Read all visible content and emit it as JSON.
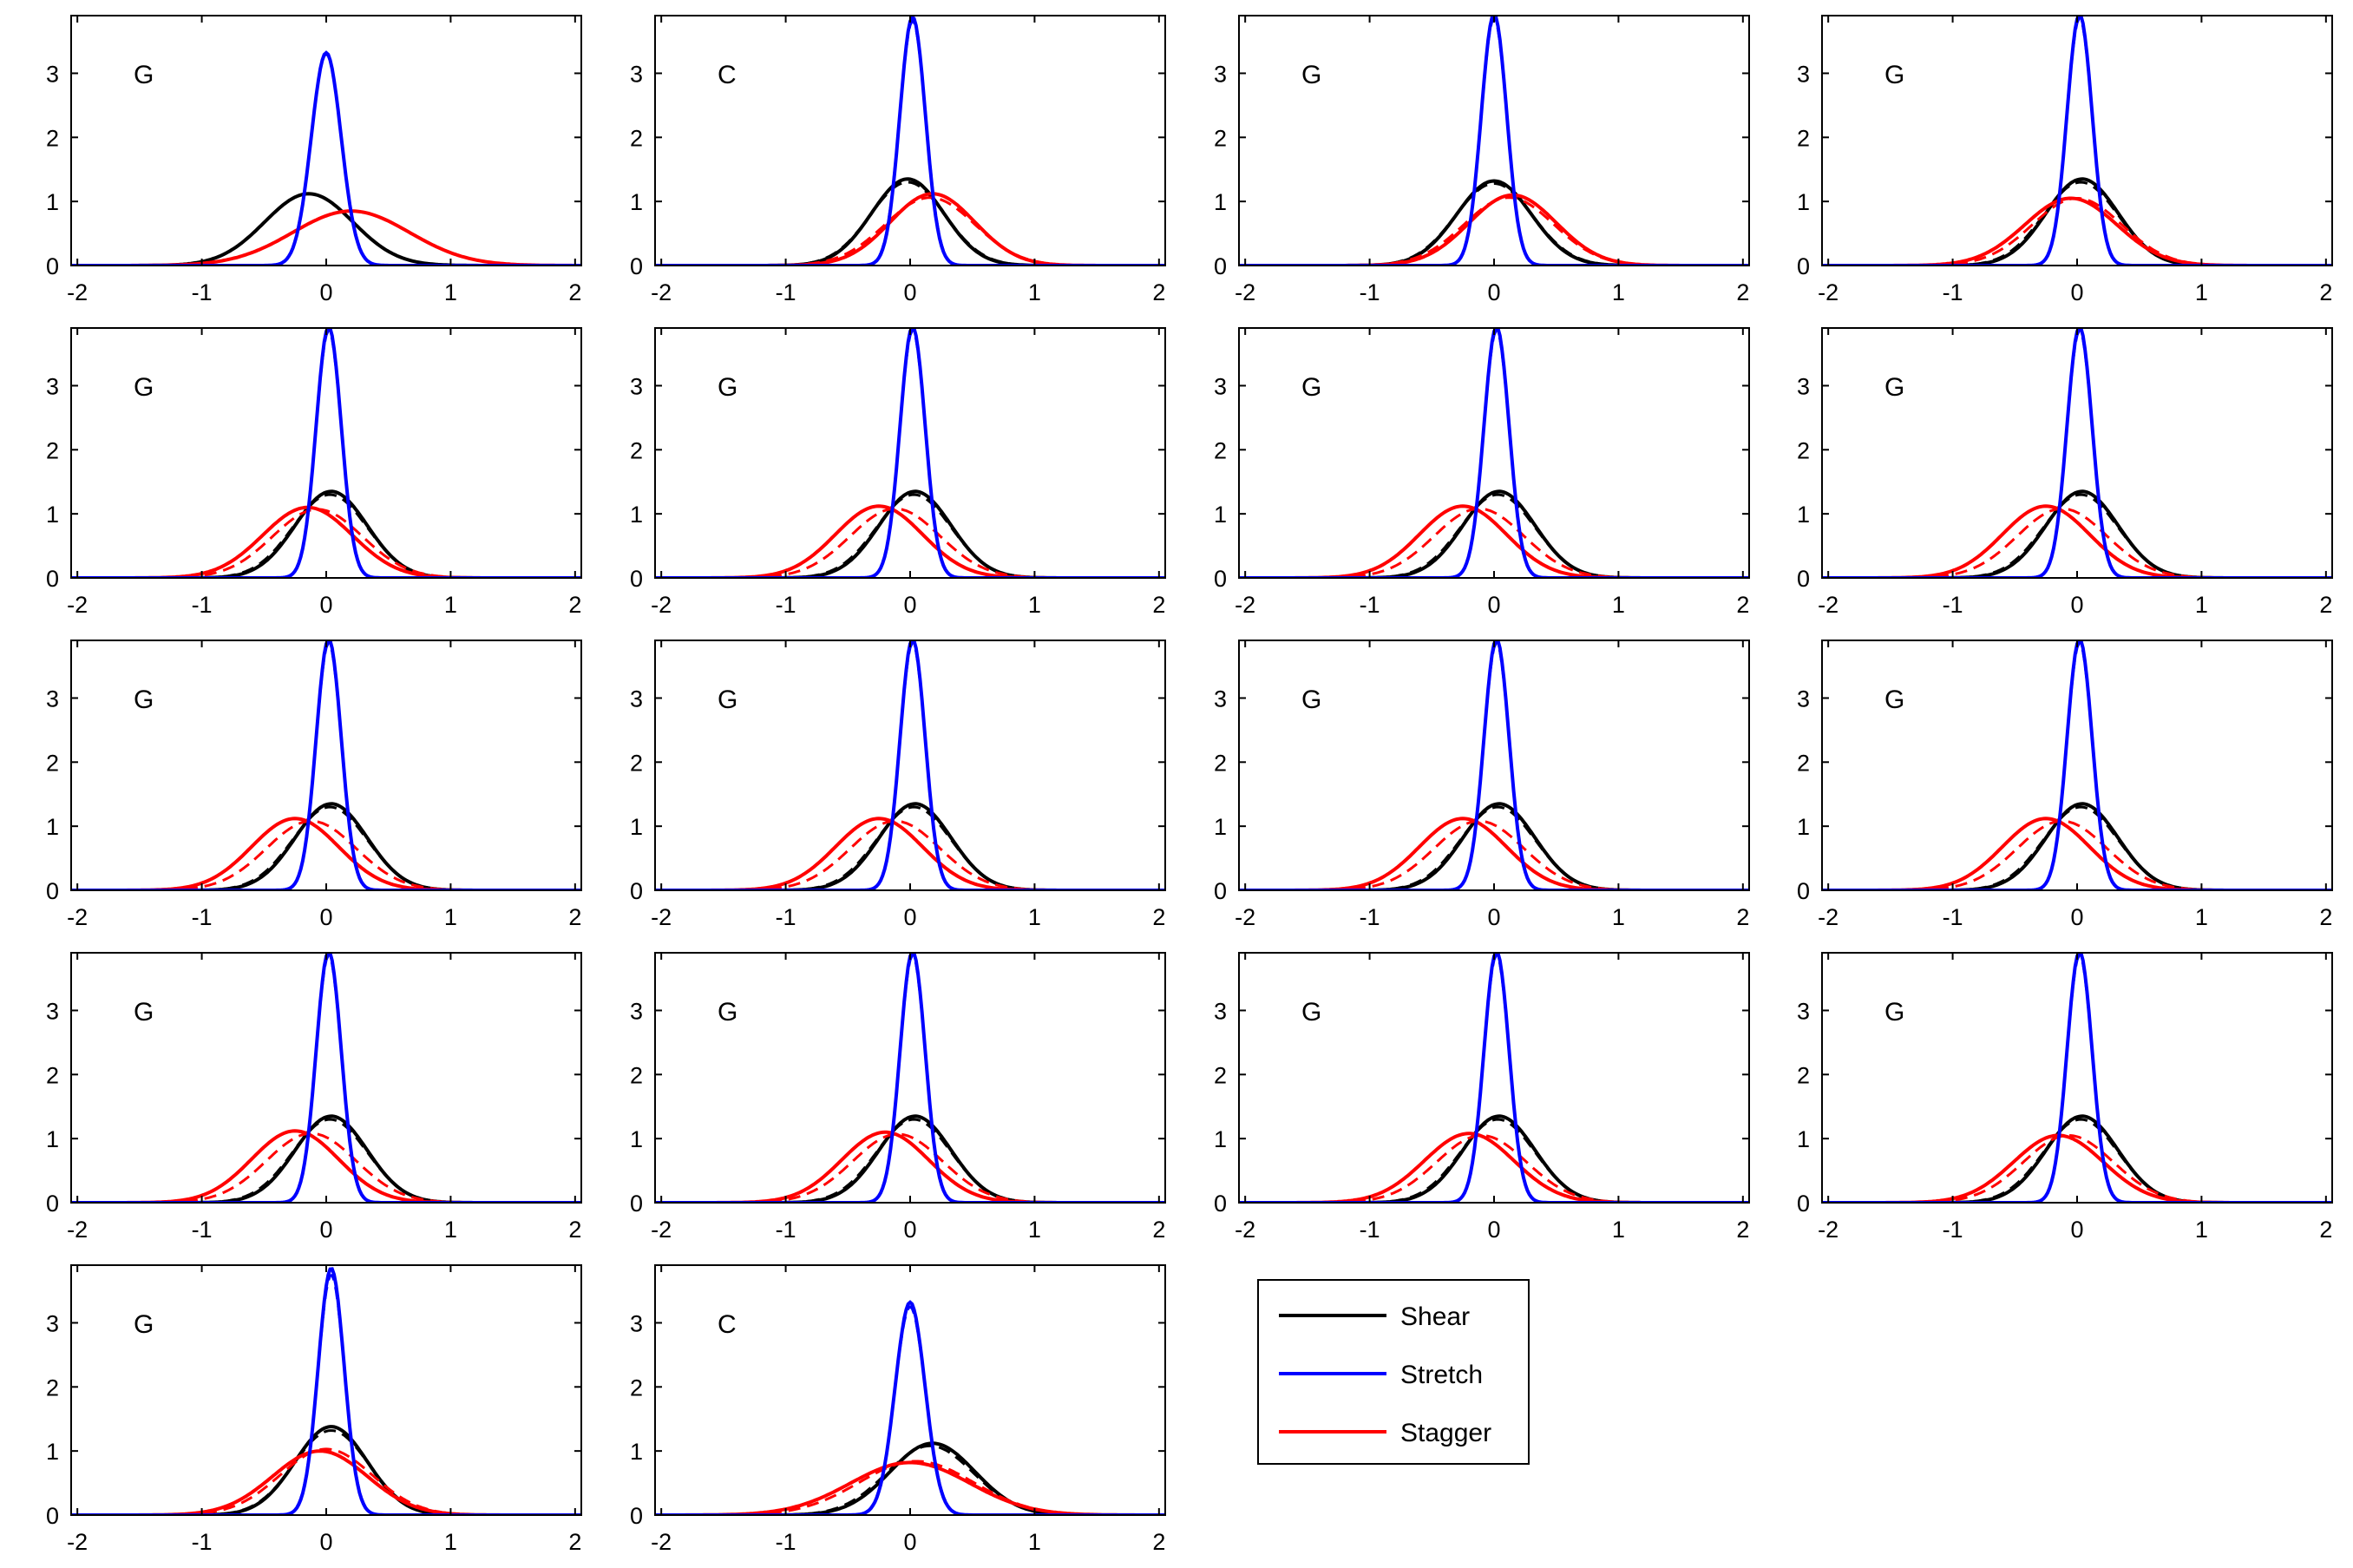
{
  "colors": {
    "shear": "#000000",
    "stretch": "#0000ff",
    "stagger": "#ff0000"
  },
  "legend": {
    "placement": "bottom-right",
    "entries": [
      {
        "key": "shear",
        "label": "Shear"
      },
      {
        "key": "stretch",
        "label": "Stretch"
      },
      {
        "key": "stagger",
        "label": "Stagger"
      }
    ]
  },
  "chart_data": {
    "type": "line",
    "description_of_series": "Each panel shows three families of density curves (Shear, Stretch, Stagger), each drawn as a solid line and a dashed line.",
    "xlim": [
      -2.05,
      2.05
    ],
    "ylim": [
      0,
      3.9
    ],
    "xticks": [
      -2,
      -1,
      0,
      1,
      2
    ],
    "yticks": [
      0,
      1,
      2,
      3
    ],
    "grid": false,
    "panels": [
      {
        "label": "G",
        "curves": {
          "shear": [
            {
              "peak": 1.12,
              "mu": -0.14,
              "sigma": 0.355,
              "style": "solid"
            },
            {
              "peak": 1.12,
              "mu": -0.14,
              "sigma": 0.355,
              "style": "dashed"
            }
          ],
          "stretch": [
            {
              "peak": 3.32,
              "mu": 0.0,
              "sigma": 0.12,
              "style": "solid"
            },
            {
              "peak": 3.3,
              "mu": 0.0,
              "sigma": 0.121,
              "style": "dashed"
            }
          ],
          "stagger": [
            {
              "peak": 0.85,
              "mu": 0.2,
              "sigma": 0.47,
              "style": "solid"
            },
            {
              "peak": 0.85,
              "mu": 0.2,
              "sigma": 0.47,
              "style": "dashed"
            }
          ]
        }
      },
      {
        "label": "C",
        "curves": {
          "shear": [
            {
              "peak": 1.35,
              "mu": -0.02,
              "sigma": 0.29,
              "style": "solid"
            },
            {
              "peak": 1.3,
              "mu": -0.02,
              "sigma": 0.3,
              "style": "dashed"
            }
          ],
          "stretch": [
            {
              "peak": 3.88,
              "mu": 0.02,
              "sigma": 0.103,
              "style": "solid"
            },
            {
              "peak": 3.82,
              "mu": 0.02,
              "sigma": 0.105,
              "style": "dashed"
            }
          ],
          "stagger": [
            {
              "peak": 1.12,
              "mu": 0.18,
              "sigma": 0.34,
              "style": "solid"
            },
            {
              "peak": 1.06,
              "mu": 0.16,
              "sigma": 0.36,
              "style": "dashed"
            }
          ]
        }
      },
      {
        "label": "G",
        "curves": {
          "shear": [
            {
              "peak": 1.32,
              "mu": 0.0,
              "sigma": 0.3,
              "style": "solid"
            },
            {
              "peak": 1.28,
              "mu": 0.0,
              "sigma": 0.31,
              "style": "dashed"
            }
          ],
          "stretch": [
            {
              "peak": 3.92,
              "mu": 0.0,
              "sigma": 0.102,
              "style": "solid"
            },
            {
              "peak": 3.86,
              "mu": 0.0,
              "sigma": 0.103,
              "style": "dashed"
            }
          ],
          "stagger": [
            {
              "peak": 1.1,
              "mu": 0.15,
              "sigma": 0.35,
              "style": "solid"
            },
            {
              "peak": 1.06,
              "mu": 0.12,
              "sigma": 0.36,
              "style": "dashed"
            }
          ]
        }
      },
      {
        "label": "G",
        "curves": {
          "shear": [
            {
              "peak": 1.35,
              "mu": 0.04,
              "sigma": 0.29,
              "style": "solid"
            },
            {
              "peak": 1.3,
              "mu": 0.03,
              "sigma": 0.3,
              "style": "dashed"
            }
          ],
          "stretch": [
            {
              "peak": 3.92,
              "mu": 0.02,
              "sigma": 0.101,
              "style": "solid"
            },
            {
              "peak": 3.86,
              "mu": 0.02,
              "sigma": 0.102,
              "style": "dashed"
            }
          ],
          "stagger": [
            {
              "peak": 1.05,
              "mu": -0.05,
              "sigma": 0.37,
              "style": "solid"
            },
            {
              "peak": 1.05,
              "mu": 0.0,
              "sigma": 0.36,
              "style": "dashed"
            }
          ]
        }
      },
      {
        "label": "G",
        "curves": {
          "shear": [
            {
              "peak": 1.35,
              "mu": 0.04,
              "sigma": 0.29,
              "style": "solid"
            },
            {
              "peak": 1.3,
              "mu": 0.03,
              "sigma": 0.3,
              "style": "dashed"
            }
          ],
          "stretch": [
            {
              "peak": 3.92,
              "mu": 0.02,
              "sigma": 0.101,
              "style": "solid"
            },
            {
              "peak": 3.86,
              "mu": 0.02,
              "sigma": 0.102,
              "style": "dashed"
            }
          ],
          "stagger": [
            {
              "peak": 1.1,
              "mu": -0.15,
              "sigma": 0.36,
              "style": "solid"
            },
            {
              "peak": 1.07,
              "mu": -0.07,
              "sigma": 0.36,
              "style": "dashed"
            }
          ]
        }
      },
      {
        "label": "G",
        "curves": {
          "shear": [
            {
              "peak": 1.35,
              "mu": 0.04,
              "sigma": 0.29,
              "style": "solid"
            },
            {
              "peak": 1.3,
              "mu": 0.03,
              "sigma": 0.3,
              "style": "dashed"
            }
          ],
          "stretch": [
            {
              "peak": 3.92,
              "mu": 0.02,
              "sigma": 0.101,
              "style": "solid"
            },
            {
              "peak": 3.86,
              "mu": 0.02,
              "sigma": 0.102,
              "style": "dashed"
            }
          ],
          "stagger": [
            {
              "peak": 1.12,
              "mu": -0.25,
              "sigma": 0.35,
              "style": "solid"
            },
            {
              "peak": 1.08,
              "mu": -0.12,
              "sigma": 0.36,
              "style": "dashed"
            }
          ]
        }
      },
      {
        "label": "G",
        "curves": {
          "shear": [
            {
              "peak": 1.35,
              "mu": 0.04,
              "sigma": 0.29,
              "style": "solid"
            },
            {
              "peak": 1.3,
              "mu": 0.03,
              "sigma": 0.3,
              "style": "dashed"
            }
          ],
          "stretch": [
            {
              "peak": 3.92,
              "mu": 0.02,
              "sigma": 0.101,
              "style": "solid"
            },
            {
              "peak": 3.86,
              "mu": 0.02,
              "sigma": 0.102,
              "style": "dashed"
            }
          ],
          "stagger": [
            {
              "peak": 1.12,
              "mu": -0.25,
              "sigma": 0.35,
              "style": "solid"
            },
            {
              "peak": 1.08,
              "mu": -0.12,
              "sigma": 0.36,
              "style": "dashed"
            }
          ]
        }
      },
      {
        "label": "G",
        "curves": {
          "shear": [
            {
              "peak": 1.35,
              "mu": 0.04,
              "sigma": 0.29,
              "style": "solid"
            },
            {
              "peak": 1.3,
              "mu": 0.03,
              "sigma": 0.3,
              "style": "dashed"
            }
          ],
          "stretch": [
            {
              "peak": 3.92,
              "mu": 0.02,
              "sigma": 0.101,
              "style": "solid"
            },
            {
              "peak": 3.86,
              "mu": 0.02,
              "sigma": 0.102,
              "style": "dashed"
            }
          ],
          "stagger": [
            {
              "peak": 1.12,
              "mu": -0.25,
              "sigma": 0.35,
              "style": "solid"
            },
            {
              "peak": 1.08,
              "mu": -0.12,
              "sigma": 0.36,
              "style": "dashed"
            }
          ]
        }
      },
      {
        "label": "G",
        "curves": {
          "shear": [
            {
              "peak": 1.35,
              "mu": 0.04,
              "sigma": 0.29,
              "style": "solid"
            },
            {
              "peak": 1.3,
              "mu": 0.03,
              "sigma": 0.3,
              "style": "dashed"
            }
          ],
          "stretch": [
            {
              "peak": 3.92,
              "mu": 0.02,
              "sigma": 0.101,
              "style": "solid"
            },
            {
              "peak": 3.86,
              "mu": 0.02,
              "sigma": 0.102,
              "style": "dashed"
            }
          ],
          "stagger": [
            {
              "peak": 1.12,
              "mu": -0.25,
              "sigma": 0.35,
              "style": "solid"
            },
            {
              "peak": 1.08,
              "mu": -0.12,
              "sigma": 0.36,
              "style": "dashed"
            }
          ]
        }
      },
      {
        "label": "G",
        "curves": {
          "shear": [
            {
              "peak": 1.35,
              "mu": 0.04,
              "sigma": 0.29,
              "style": "solid"
            },
            {
              "peak": 1.3,
              "mu": 0.03,
              "sigma": 0.3,
              "style": "dashed"
            }
          ],
          "stretch": [
            {
              "peak": 3.92,
              "mu": 0.02,
              "sigma": 0.101,
              "style": "solid"
            },
            {
              "peak": 3.86,
              "mu": 0.02,
              "sigma": 0.102,
              "style": "dashed"
            }
          ],
          "stagger": [
            {
              "peak": 1.12,
              "mu": -0.25,
              "sigma": 0.35,
              "style": "solid"
            },
            {
              "peak": 1.08,
              "mu": -0.12,
              "sigma": 0.36,
              "style": "dashed"
            }
          ]
        }
      },
      {
        "label": "G",
        "curves": {
          "shear": [
            {
              "peak": 1.35,
              "mu": 0.04,
              "sigma": 0.29,
              "style": "solid"
            },
            {
              "peak": 1.3,
              "mu": 0.03,
              "sigma": 0.3,
              "style": "dashed"
            }
          ],
          "stretch": [
            {
              "peak": 3.92,
              "mu": 0.02,
              "sigma": 0.101,
              "style": "solid"
            },
            {
              "peak": 3.86,
              "mu": 0.02,
              "sigma": 0.102,
              "style": "dashed"
            }
          ],
          "stagger": [
            {
              "peak": 1.12,
              "mu": -0.25,
              "sigma": 0.35,
              "style": "solid"
            },
            {
              "peak": 1.08,
              "mu": -0.12,
              "sigma": 0.36,
              "style": "dashed"
            }
          ]
        }
      },
      {
        "label": "G",
        "curves": {
          "shear": [
            {
              "peak": 1.35,
              "mu": 0.04,
              "sigma": 0.29,
              "style": "solid"
            },
            {
              "peak": 1.3,
              "mu": 0.03,
              "sigma": 0.3,
              "style": "dashed"
            }
          ],
          "stretch": [
            {
              "peak": 3.92,
              "mu": 0.02,
              "sigma": 0.101,
              "style": "solid"
            },
            {
              "peak": 3.86,
              "mu": 0.02,
              "sigma": 0.102,
              "style": "dashed"
            }
          ],
          "stagger": [
            {
              "peak": 1.12,
              "mu": -0.25,
              "sigma": 0.35,
              "style": "solid"
            },
            {
              "peak": 1.08,
              "mu": -0.12,
              "sigma": 0.36,
              "style": "dashed"
            }
          ]
        }
      },
      {
        "label": "G",
        "curves": {
          "shear": [
            {
              "peak": 1.35,
              "mu": 0.04,
              "sigma": 0.29,
              "style": "solid"
            },
            {
              "peak": 1.3,
              "mu": 0.03,
              "sigma": 0.3,
              "style": "dashed"
            }
          ],
          "stretch": [
            {
              "peak": 3.92,
              "mu": 0.02,
              "sigma": 0.101,
              "style": "solid"
            },
            {
              "peak": 3.86,
              "mu": 0.02,
              "sigma": 0.102,
              "style": "dashed"
            }
          ],
          "stagger": [
            {
              "peak": 1.12,
              "mu": -0.25,
              "sigma": 0.35,
              "style": "solid"
            },
            {
              "peak": 1.08,
              "mu": -0.12,
              "sigma": 0.36,
              "style": "dashed"
            }
          ]
        }
      },
      {
        "label": "G",
        "curves": {
          "shear": [
            {
              "peak": 1.35,
              "mu": 0.04,
              "sigma": 0.29,
              "style": "solid"
            },
            {
              "peak": 1.3,
              "mu": 0.03,
              "sigma": 0.3,
              "style": "dashed"
            }
          ],
          "stretch": [
            {
              "peak": 3.92,
              "mu": 0.02,
              "sigma": 0.101,
              "style": "solid"
            },
            {
              "peak": 3.86,
              "mu": 0.02,
              "sigma": 0.102,
              "style": "dashed"
            }
          ],
          "stagger": [
            {
              "peak": 1.1,
              "mu": -0.2,
              "sigma": 0.35,
              "style": "solid"
            },
            {
              "peak": 1.07,
              "mu": -0.1,
              "sigma": 0.36,
              "style": "dashed"
            }
          ]
        }
      },
      {
        "label": "G",
        "curves": {
          "shear": [
            {
              "peak": 1.35,
              "mu": 0.04,
              "sigma": 0.29,
              "style": "solid"
            },
            {
              "peak": 1.3,
              "mu": 0.03,
              "sigma": 0.3,
              "style": "dashed"
            }
          ],
          "stretch": [
            {
              "peak": 3.92,
              "mu": 0.02,
              "sigma": 0.101,
              "style": "solid"
            },
            {
              "peak": 3.86,
              "mu": 0.02,
              "sigma": 0.102,
              "style": "dashed"
            }
          ],
          "stagger": [
            {
              "peak": 1.08,
              "mu": -0.2,
              "sigma": 0.36,
              "style": "solid"
            },
            {
              "peak": 1.05,
              "mu": -0.1,
              "sigma": 0.36,
              "style": "dashed"
            }
          ]
        }
      },
      {
        "label": "G",
        "curves": {
          "shear": [
            {
              "peak": 1.35,
              "mu": 0.04,
              "sigma": 0.29,
              "style": "solid"
            },
            {
              "peak": 1.3,
              "mu": 0.03,
              "sigma": 0.3,
              "style": "dashed"
            }
          ],
          "stretch": [
            {
              "peak": 3.92,
              "mu": 0.02,
              "sigma": 0.101,
              "style": "solid"
            },
            {
              "peak": 3.86,
              "mu": 0.02,
              "sigma": 0.102,
              "style": "dashed"
            }
          ],
          "stagger": [
            {
              "peak": 1.05,
              "mu": -0.15,
              "sigma": 0.36,
              "style": "solid"
            },
            {
              "peak": 1.05,
              "mu": -0.07,
              "sigma": 0.36,
              "style": "dashed"
            }
          ]
        }
      },
      {
        "label": "G",
        "curves": {
          "shear": [
            {
              "peak": 1.38,
              "mu": 0.04,
              "sigma": 0.29,
              "style": "solid"
            },
            {
              "peak": 1.32,
              "mu": 0.04,
              "sigma": 0.3,
              "style": "dashed"
            }
          ],
          "stretch": [
            {
              "peak": 3.85,
              "mu": 0.04,
              "sigma": 0.104,
              "style": "solid"
            },
            {
              "peak": 3.75,
              "mu": 0.04,
              "sigma": 0.106,
              "style": "dashed"
            }
          ],
          "stagger": [
            {
              "peak": 1.0,
              "mu": -0.05,
              "sigma": 0.38,
              "style": "solid"
            },
            {
              "peak": 1.03,
              "mu": 0.0,
              "sigma": 0.37,
              "style": "dashed"
            }
          ]
        }
      },
      {
        "label": "C",
        "curves": {
          "shear": [
            {
              "peak": 1.12,
              "mu": 0.18,
              "sigma": 0.34,
              "style": "solid"
            },
            {
              "peak": 1.08,
              "mu": 0.16,
              "sigma": 0.35,
              "style": "dashed"
            }
          ],
          "stretch": [
            {
              "peak": 3.32,
              "mu": 0.0,
              "sigma": 0.12,
              "style": "solid"
            },
            {
              "peak": 3.25,
              "mu": 0.0,
              "sigma": 0.122,
              "style": "dashed"
            }
          ],
          "stagger": [
            {
              "peak": 0.82,
              "mu": 0.0,
              "sigma": 0.48,
              "style": "solid"
            },
            {
              "peak": 0.84,
              "mu": 0.05,
              "sigma": 0.46,
              "style": "dashed"
            }
          ]
        }
      }
    ]
  }
}
